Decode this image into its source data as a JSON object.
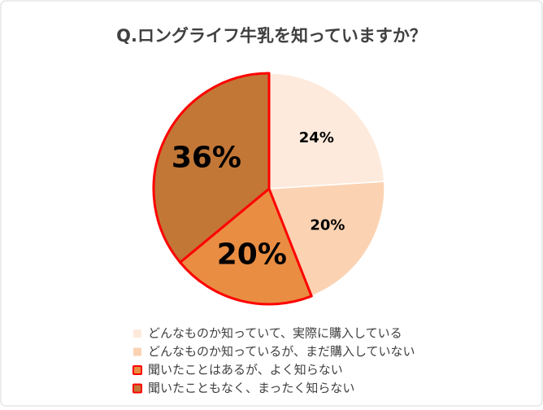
{
  "chart_data": {
    "type": "pie",
    "title": "Q.ロングライフ牛乳を知っていますか？",
    "categories": [
      "どんなものか知っていて、実際に購入している",
      "どんなものか知っているが、まだ購入していない",
      "聞いたことはあるが、よく知らない",
      "聞いたこともなく、まったく知らない"
    ],
    "values": [
      24,
      20,
      20,
      36
    ],
    "value_labels": [
      "24%",
      "20%",
      "20%",
      "36%"
    ],
    "colors": [
      "#fdeadc",
      "#fbd3b3",
      "#e98d43",
      "#c27737"
    ],
    "edge_colors": [
      null,
      null,
      "#ff0000",
      "#ff0000"
    ]
  }
}
